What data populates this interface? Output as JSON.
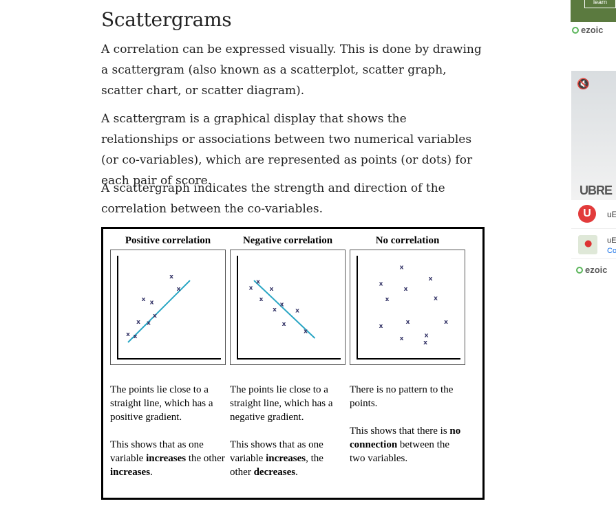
{
  "article": {
    "title": "Scattergrams",
    "paragraphs": [
      "A correlation can be expressed visually. This is done by drawing a scattergram (also known as a scatterplot, scatter graph, scatter chart, or scatter diagram).",
      "A scattergram is a graphical display that shows the relationships or associations between two numerical variables (or co-variables), which are represented as points (or dots) for each pair of score.",
      "A scattergraph indicates the strength and direction of the correlation between the co-variables."
    ]
  },
  "figure": {
    "columns": [
      {
        "title": "Positive correlation",
        "desc1": "The points lie close to a straight line, which has a positive gradient.",
        "desc2_parts": [
          "This shows that as one variable ",
          "increases",
          " the other ",
          "increases",
          "."
        ]
      },
      {
        "title": "Negative correlation",
        "desc1": "The points lie close to a straight line, which has a negative gradient.",
        "desc2_parts": [
          "This shows that as one variable ",
          "increases",
          ", the other ",
          "decreases",
          "."
        ]
      },
      {
        "title": "No correlation",
        "desc1": "There is no pattern to the points.",
        "desc2_parts": [
          "This shows that there is ",
          "no connection",
          " between the two variables."
        ]
      }
    ],
    "marker": "x",
    "colors": {
      "line": "#2aa6c4",
      "marker": "#333366",
      "axis": "#000000"
    }
  },
  "chart_data": [
    {
      "type": "scatter",
      "title": "Positive correlation",
      "xlim": [
        0,
        10
      ],
      "ylim": [
        0,
        10
      ],
      "x": [
        1.0,
        1.7,
        2.0,
        2.5,
        3.0,
        3.3,
        3.6,
        5.2,
        5.9
      ],
      "y": [
        2.4,
        2.2,
        3.6,
        5.8,
        3.5,
        5.5,
        4.2,
        8.0,
        6.8
      ],
      "trendline": {
        "x": [
          1.0,
          7.0
        ],
        "y": [
          1.6,
          7.6
        ]
      }
    },
    {
      "type": "scatter",
      "title": "Negative correlation",
      "xlim": [
        0,
        10
      ],
      "ylim": [
        0,
        10
      ],
      "x": [
        1.3,
        2.0,
        2.3,
        3.3,
        3.6,
        4.3,
        4.5,
        5.8,
        6.6
      ],
      "y": [
        6.9,
        7.5,
        5.8,
        6.8,
        4.8,
        5.3,
        3.4,
        4.7,
        2.7
      ],
      "trendline": {
        "x": [
          1.6,
          7.5
        ],
        "y": [
          7.6,
          2.0
        ]
      }
    },
    {
      "type": "scatter",
      "title": "No correlation",
      "xlim": [
        0,
        10
      ],
      "ylim": [
        0,
        10
      ],
      "x": [
        2.3,
        2.9,
        4.3,
        4.7,
        7.1,
        4.9,
        7.6,
        6.6,
        8.6,
        2.3,
        4.3,
        6.7
      ],
      "y": [
        7.3,
        5.8,
        8.9,
        6.8,
        7.8,
        3.6,
        5.9,
        1.6,
        3.6,
        3.2,
        2.0,
        2.3
      ],
      "trendline": null
    }
  ],
  "sidebar_ads": {
    "top_button": "learn",
    "ezoic_label": "ezoic",
    "video_brand": "UBRE",
    "card1_text": "uE",
    "card2_line1": "uE",
    "card2_line2": "Co"
  }
}
